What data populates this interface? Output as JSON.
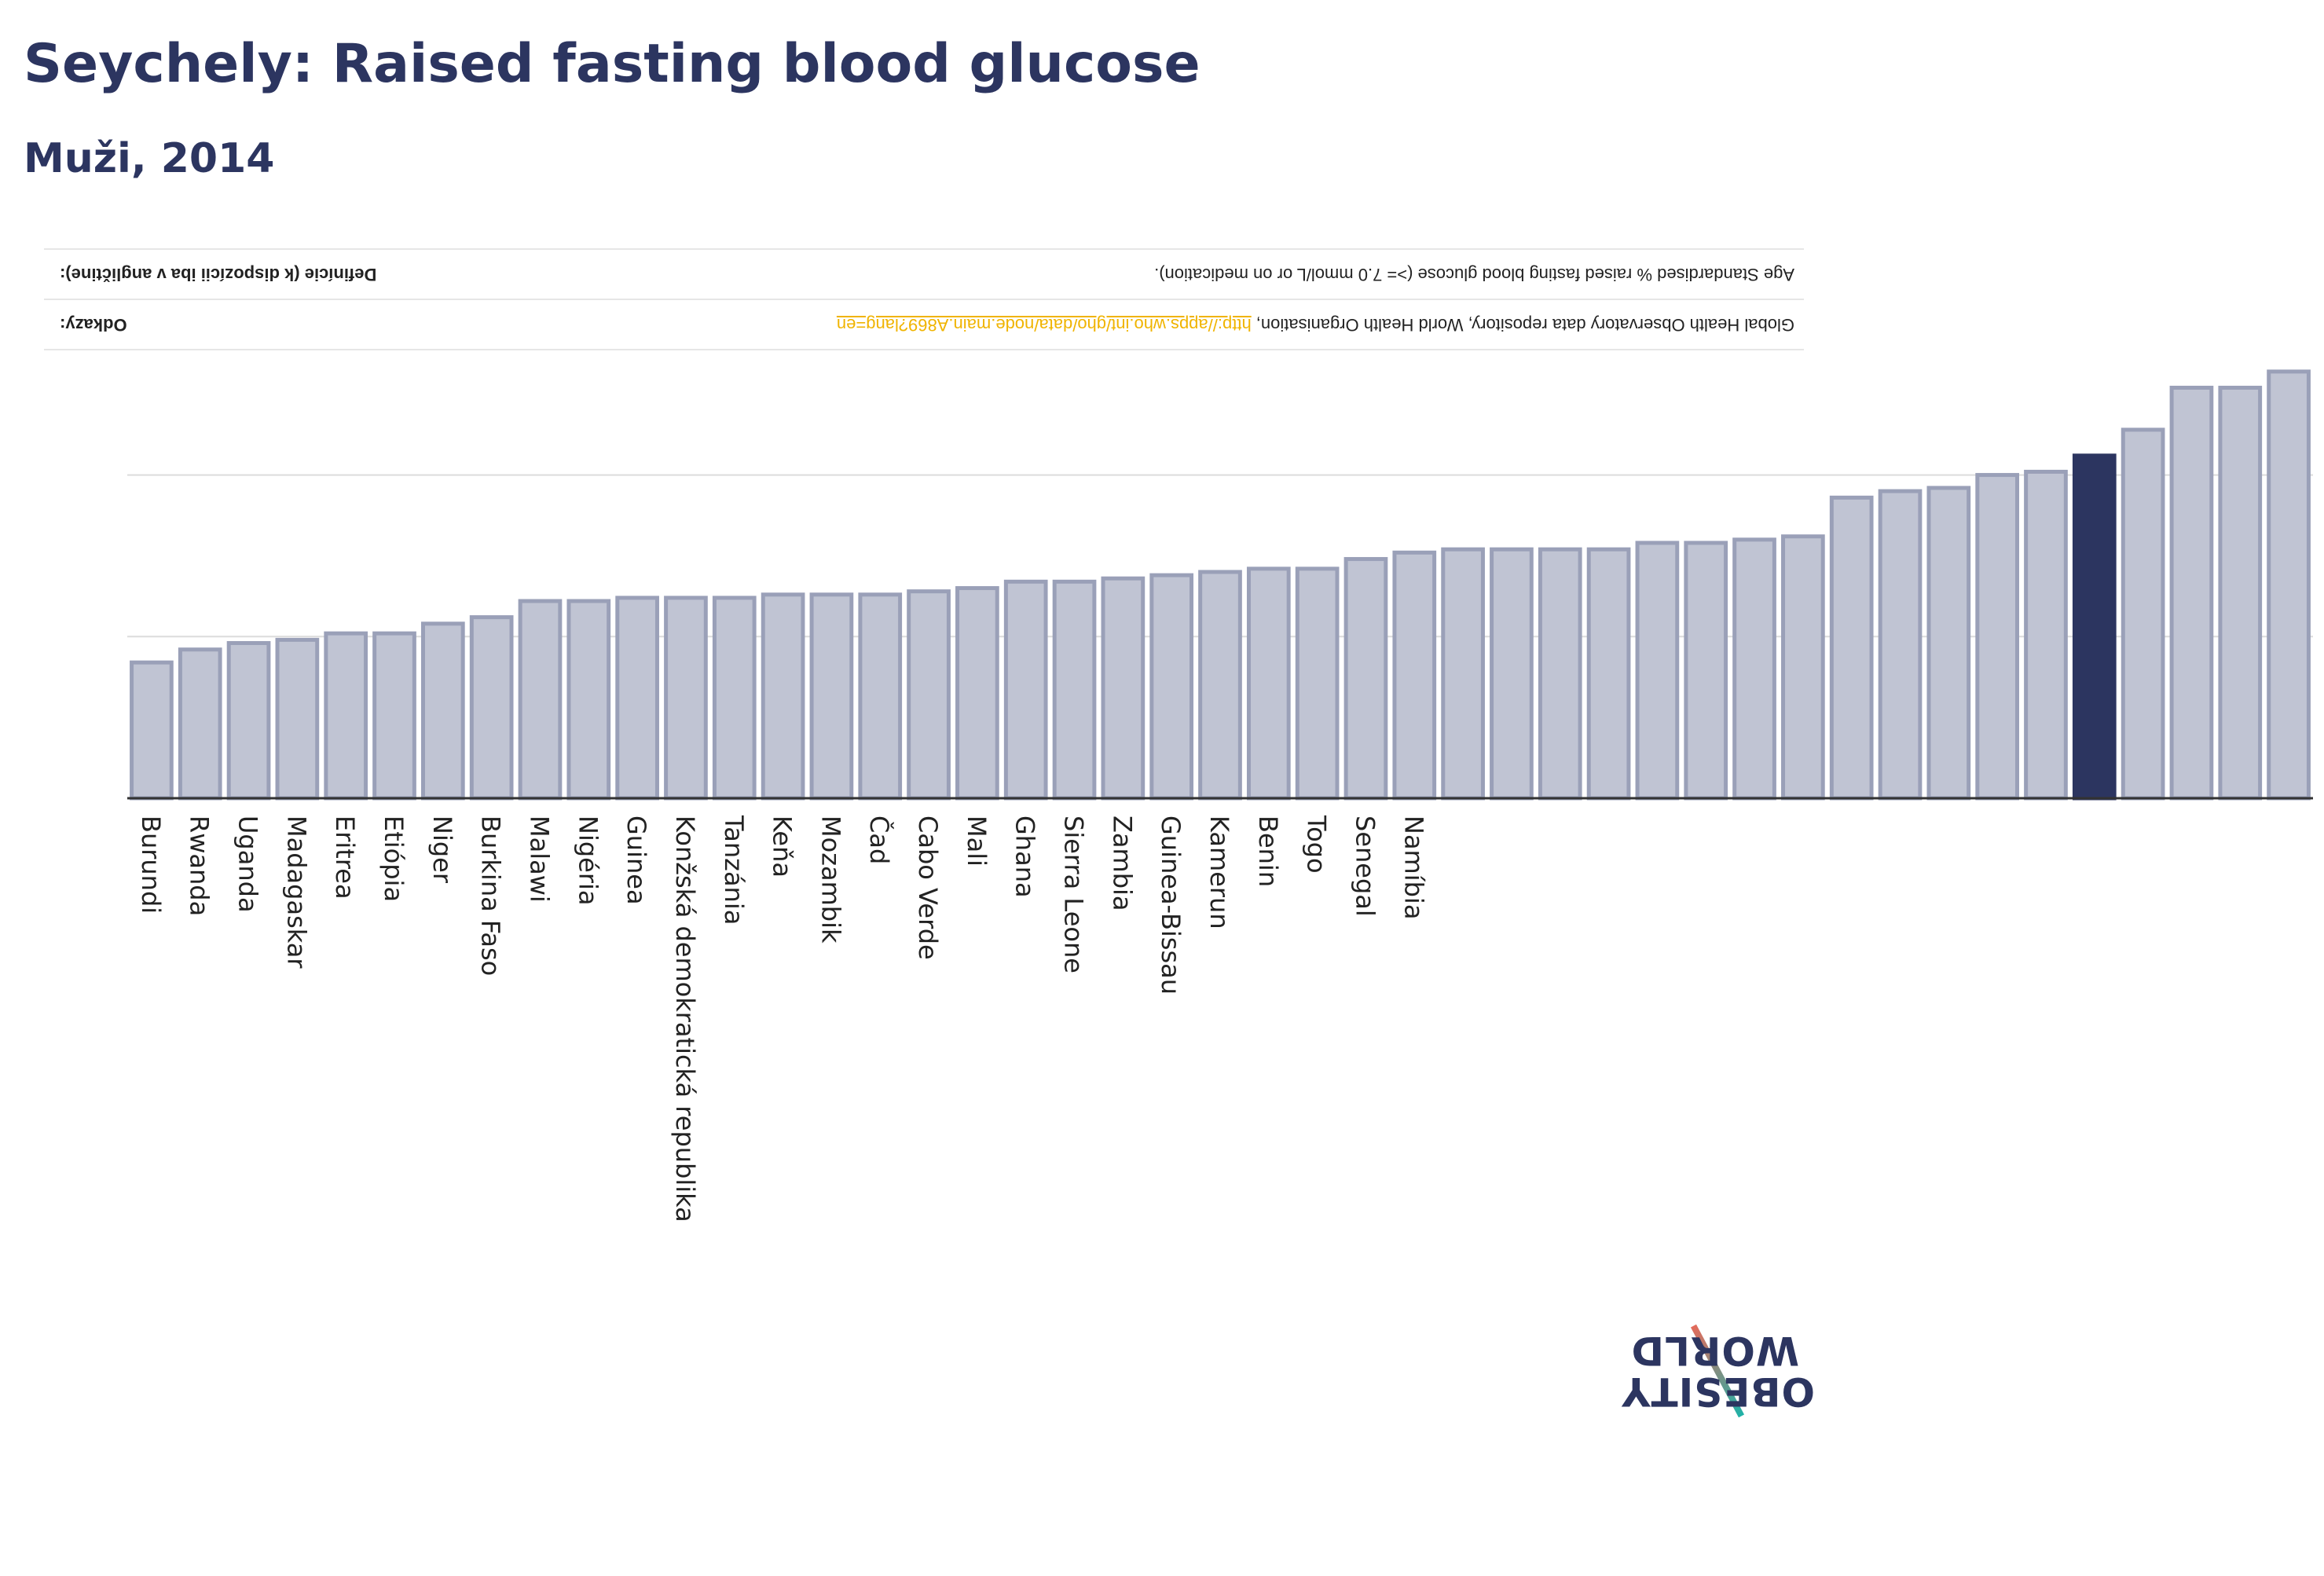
{
  "header": {
    "title": "Seychely: Raised fasting blood glucose",
    "subtitle": "Muži, 2014"
  },
  "info": {
    "definition_label": "Definície (k dispozícii iba v angličtine):",
    "definition_value": "Age Standardised % raised fasting blood glucose (>= 7.0 mmol/L or on medication).",
    "references_label": "Odkazy:",
    "references_value": "Global Health Observatory data repository, World Health Organisation, ",
    "references_link": "http://apps.who.int/gho/data/node.main.A869?lang=en"
  },
  "logo": {
    "line1": "OBESITY",
    "line2": "WORLD"
  },
  "colors": {
    "bar": "#c0c4d3",
    "bar_stroke": "#9aa0b8",
    "highlight": "#2c3560",
    "grid": "#dcdcdc"
  },
  "chart_data": {
    "type": "bar",
    "title": "Seychely: Raised fasting blood glucose",
    "subtitle": "Muži, 2014",
    "ylim": [
      0,
      14
    ],
    "grid": true,
    "highlight_index": 40,
    "categories": [
      "Burundi",
      "Rwanda",
      "Uganda",
      "Madagaskar",
      "Eritrea",
      "Etiópia",
      "Niger",
      "Burkina Faso",
      "Malawi",
      "Nigéria",
      "Guinea",
      "Konžská demokratická republika",
      "Tanzánia",
      "Keňa",
      "Mozambik",
      "Čad",
      "Cabo Verde",
      "Mali",
      "Ghana",
      "Sierra Leone",
      "Zambia",
      "Guinea-Bissau",
      "Kamerun",
      "Benin",
      "Togo",
      "Senegal",
      "Namíbia",
      "",
      "",
      "",
      "",
      "",
      "",
      "",
      "",
      "",
      "",
      "",
      "",
      "",
      "",
      "",
      "",
      "",
      ""
    ],
    "values": [
      4.2,
      4.6,
      4.8,
      4.9,
      5.1,
      5.1,
      5.4,
      5.6,
      6.1,
      6.1,
      6.2,
      6.2,
      6.2,
      6.3,
      6.3,
      6.3,
      6.4,
      6.5,
      6.7,
      6.7,
      6.8,
      6.9,
      7.0,
      7.1,
      7.1,
      7.4,
      7.6,
      7.7,
      7.7,
      7.7,
      7.7,
      7.9,
      7.9,
      8.0,
      8.1,
      9.3,
      9.5,
      9.6,
      10.0,
      10.1,
      10.6,
      11.4,
      12.7,
      12.7,
      13.2
    ]
  }
}
